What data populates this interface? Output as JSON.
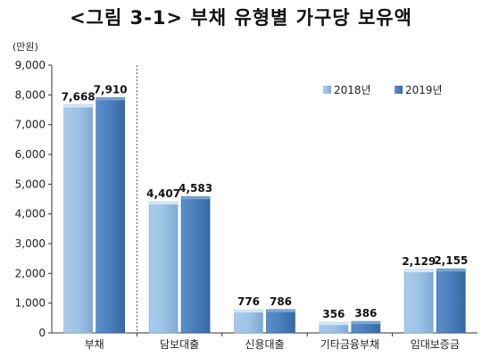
{
  "title": "<그림 3-1> 부채 유형별 가구당 보유액",
  "unit": "(만원)",
  "chart_data": {
    "type": "bar",
    "categories": [
      "부채",
      "담보대출",
      "신용대출",
      "기타금융부채",
      "임대보증금"
    ],
    "series": [
      {
        "name": "2018년",
        "values": [
          7668,
          4407,
          776,
          356,
          2129
        ],
        "labels": [
          "7,668",
          "4,407",
          "776",
          "356",
          "2,129"
        ],
        "color": "#9DC3E6"
      },
      {
        "name": "2019년",
        "values": [
          7910,
          4583,
          786,
          386,
          2155
        ],
        "labels": [
          "7,910",
          "4,583",
          "786",
          "386",
          "2,155"
        ],
        "color": "#4A7EBB"
      }
    ],
    "ylim": [
      0,
      9000
    ],
    "yticks": [
      0,
      1000,
      2000,
      3000,
      4000,
      5000,
      6000,
      7000,
      8000,
      9000
    ],
    "ytick_labels": [
      "0",
      "1,000",
      "2,000",
      "3,000",
      "4,000",
      "5,000",
      "6,000",
      "7,000",
      "8,000",
      "9,000"
    ],
    "legend_position": "top-right",
    "separator_after_category": "부채",
    "grid": false
  }
}
